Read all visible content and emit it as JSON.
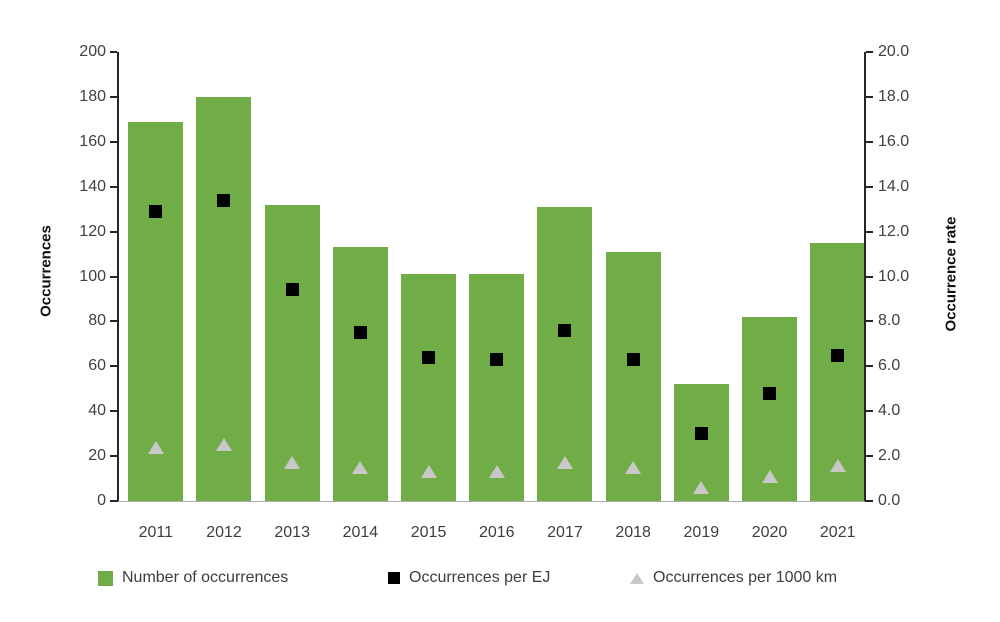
{
  "chart_data": {
    "type": "bar",
    "title": "",
    "categories": [
      "2011",
      "2012",
      "2013",
      "2014",
      "2015",
      "2016",
      "2017",
      "2018",
      "2019",
      "2020",
      "2021"
    ],
    "series": [
      {
        "name": "Number of occurrences",
        "kind": "bar",
        "axis": "left",
        "marker": "rect",
        "color": "#70AD47",
        "values": [
          169,
          180,
          132,
          113,
          101,
          101,
          131,
          111,
          52,
          82,
          115
        ]
      },
      {
        "name": "Occurrences per EJ",
        "kind": "scatter",
        "axis": "right",
        "marker": "square",
        "color": "#000000",
        "values": [
          12.9,
          13.4,
          9.4,
          7.5,
          6.4,
          6.3,
          7.6,
          6.3,
          3.0,
          4.8,
          6.5
        ]
      },
      {
        "name": "Occurrences per 1000 km",
        "kind": "scatter",
        "axis": "right",
        "marker": "triangle",
        "color": "#C8C8C8",
        "values": [
          2.4,
          2.5,
          1.7,
          1.5,
          1.3,
          1.3,
          1.7,
          1.5,
          0.6,
          1.1,
          1.6
        ]
      }
    ],
    "left_axis": {
      "title": "Occurrences",
      "min": 0,
      "max": 200,
      "step": 20,
      "tick_labels": [
        "0",
        "20",
        "40",
        "60",
        "80",
        "100",
        "120",
        "140",
        "160",
        "180",
        "200"
      ]
    },
    "right_axis": {
      "title": "Occurrence rate",
      "min": 0,
      "max": 20,
      "step": 2,
      "tick_labels": [
        "0.0",
        "2.0",
        "4.0",
        "6.0",
        "8.0",
        "10.0",
        "12.0",
        "14.0",
        "16.0",
        "18.0",
        "20.0"
      ]
    },
    "legend_position": "bottom",
    "grid": false
  },
  "colors": {
    "bar_green": "#70AD47",
    "marker_black": "#000000",
    "marker_gray": "#C8C8C8",
    "axis_text": "#404040",
    "axis_line": "#262626",
    "x_baseline": "#ababab"
  }
}
